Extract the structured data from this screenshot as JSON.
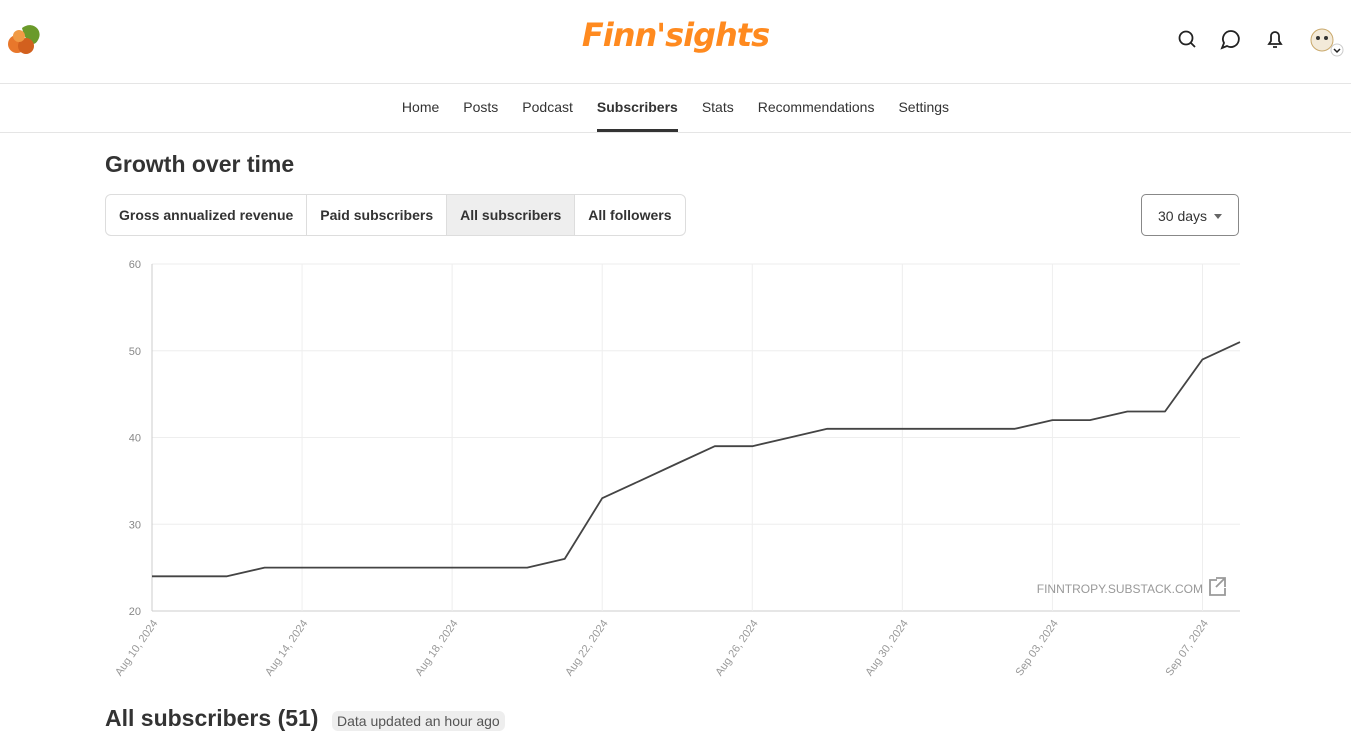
{
  "header": {
    "title": "Finn'sights"
  },
  "nav": [
    "Home",
    "Posts",
    "Podcast",
    "Subscribers",
    "Stats",
    "Recommendations",
    "Settings"
  ],
  "section": {
    "title": "Growth over time",
    "tabs": [
      "Gross annualized revenue",
      "Paid subscribers",
      "All subscribers",
      "All followers"
    ],
    "range": "30 days"
  },
  "chart_data": {
    "type": "line",
    "watermark": "FINNTROPY.SUBSTACK.COM",
    "x": [
      "2024-08-10",
      "2024-08-11",
      "2024-08-12",
      "2024-08-13",
      "2024-08-14",
      "2024-08-15",
      "2024-08-16",
      "2024-08-17",
      "2024-08-18",
      "2024-08-19",
      "2024-08-20",
      "2024-08-21",
      "2024-08-22",
      "2024-08-23",
      "2024-08-24",
      "2024-08-25",
      "2024-08-26",
      "2024-08-27",
      "2024-08-28",
      "2024-08-29",
      "2024-08-30",
      "2024-08-31",
      "2024-09-01",
      "2024-09-02",
      "2024-09-03",
      "2024-09-04",
      "2024-09-05",
      "2024-09-06",
      "2024-09-07",
      "2024-09-08"
    ],
    "series": [
      {
        "name": "All subscribers",
        "color": "#444444",
        "values": [
          24,
          24,
          24,
          25,
          25,
          25,
          25,
          25,
          25,
          25,
          25,
          26,
          33,
          35,
          37,
          39,
          39,
          40,
          41,
          41,
          41,
          41,
          41,
          41,
          42,
          42,
          43,
          43,
          49,
          51
        ]
      }
    ],
    "ylim": [
      20,
      60
    ],
    "yticks": [
      20,
      30,
      40,
      50,
      60
    ],
    "xticks": [
      {
        "value": "2024-08-10",
        "label": "Aug 10, 2024"
      },
      {
        "value": "2024-08-14",
        "label": "Aug 14, 2024"
      },
      {
        "value": "2024-08-18",
        "label": "Aug 18, 2024"
      },
      {
        "value": "2024-08-22",
        "label": "Aug 22, 2024"
      },
      {
        "value": "2024-08-26",
        "label": "Aug 26, 2024"
      },
      {
        "value": "2024-08-30",
        "label": "Aug 30, 2024"
      },
      {
        "value": "2024-09-03",
        "label": "Sep 03, 2024"
      },
      {
        "value": "2024-09-07",
        "label": "Sep 07, 2024"
      }
    ],
    "grid": true
  },
  "footer": {
    "title": "All subscribers (51)",
    "badge": "Data updated an hour ago"
  }
}
